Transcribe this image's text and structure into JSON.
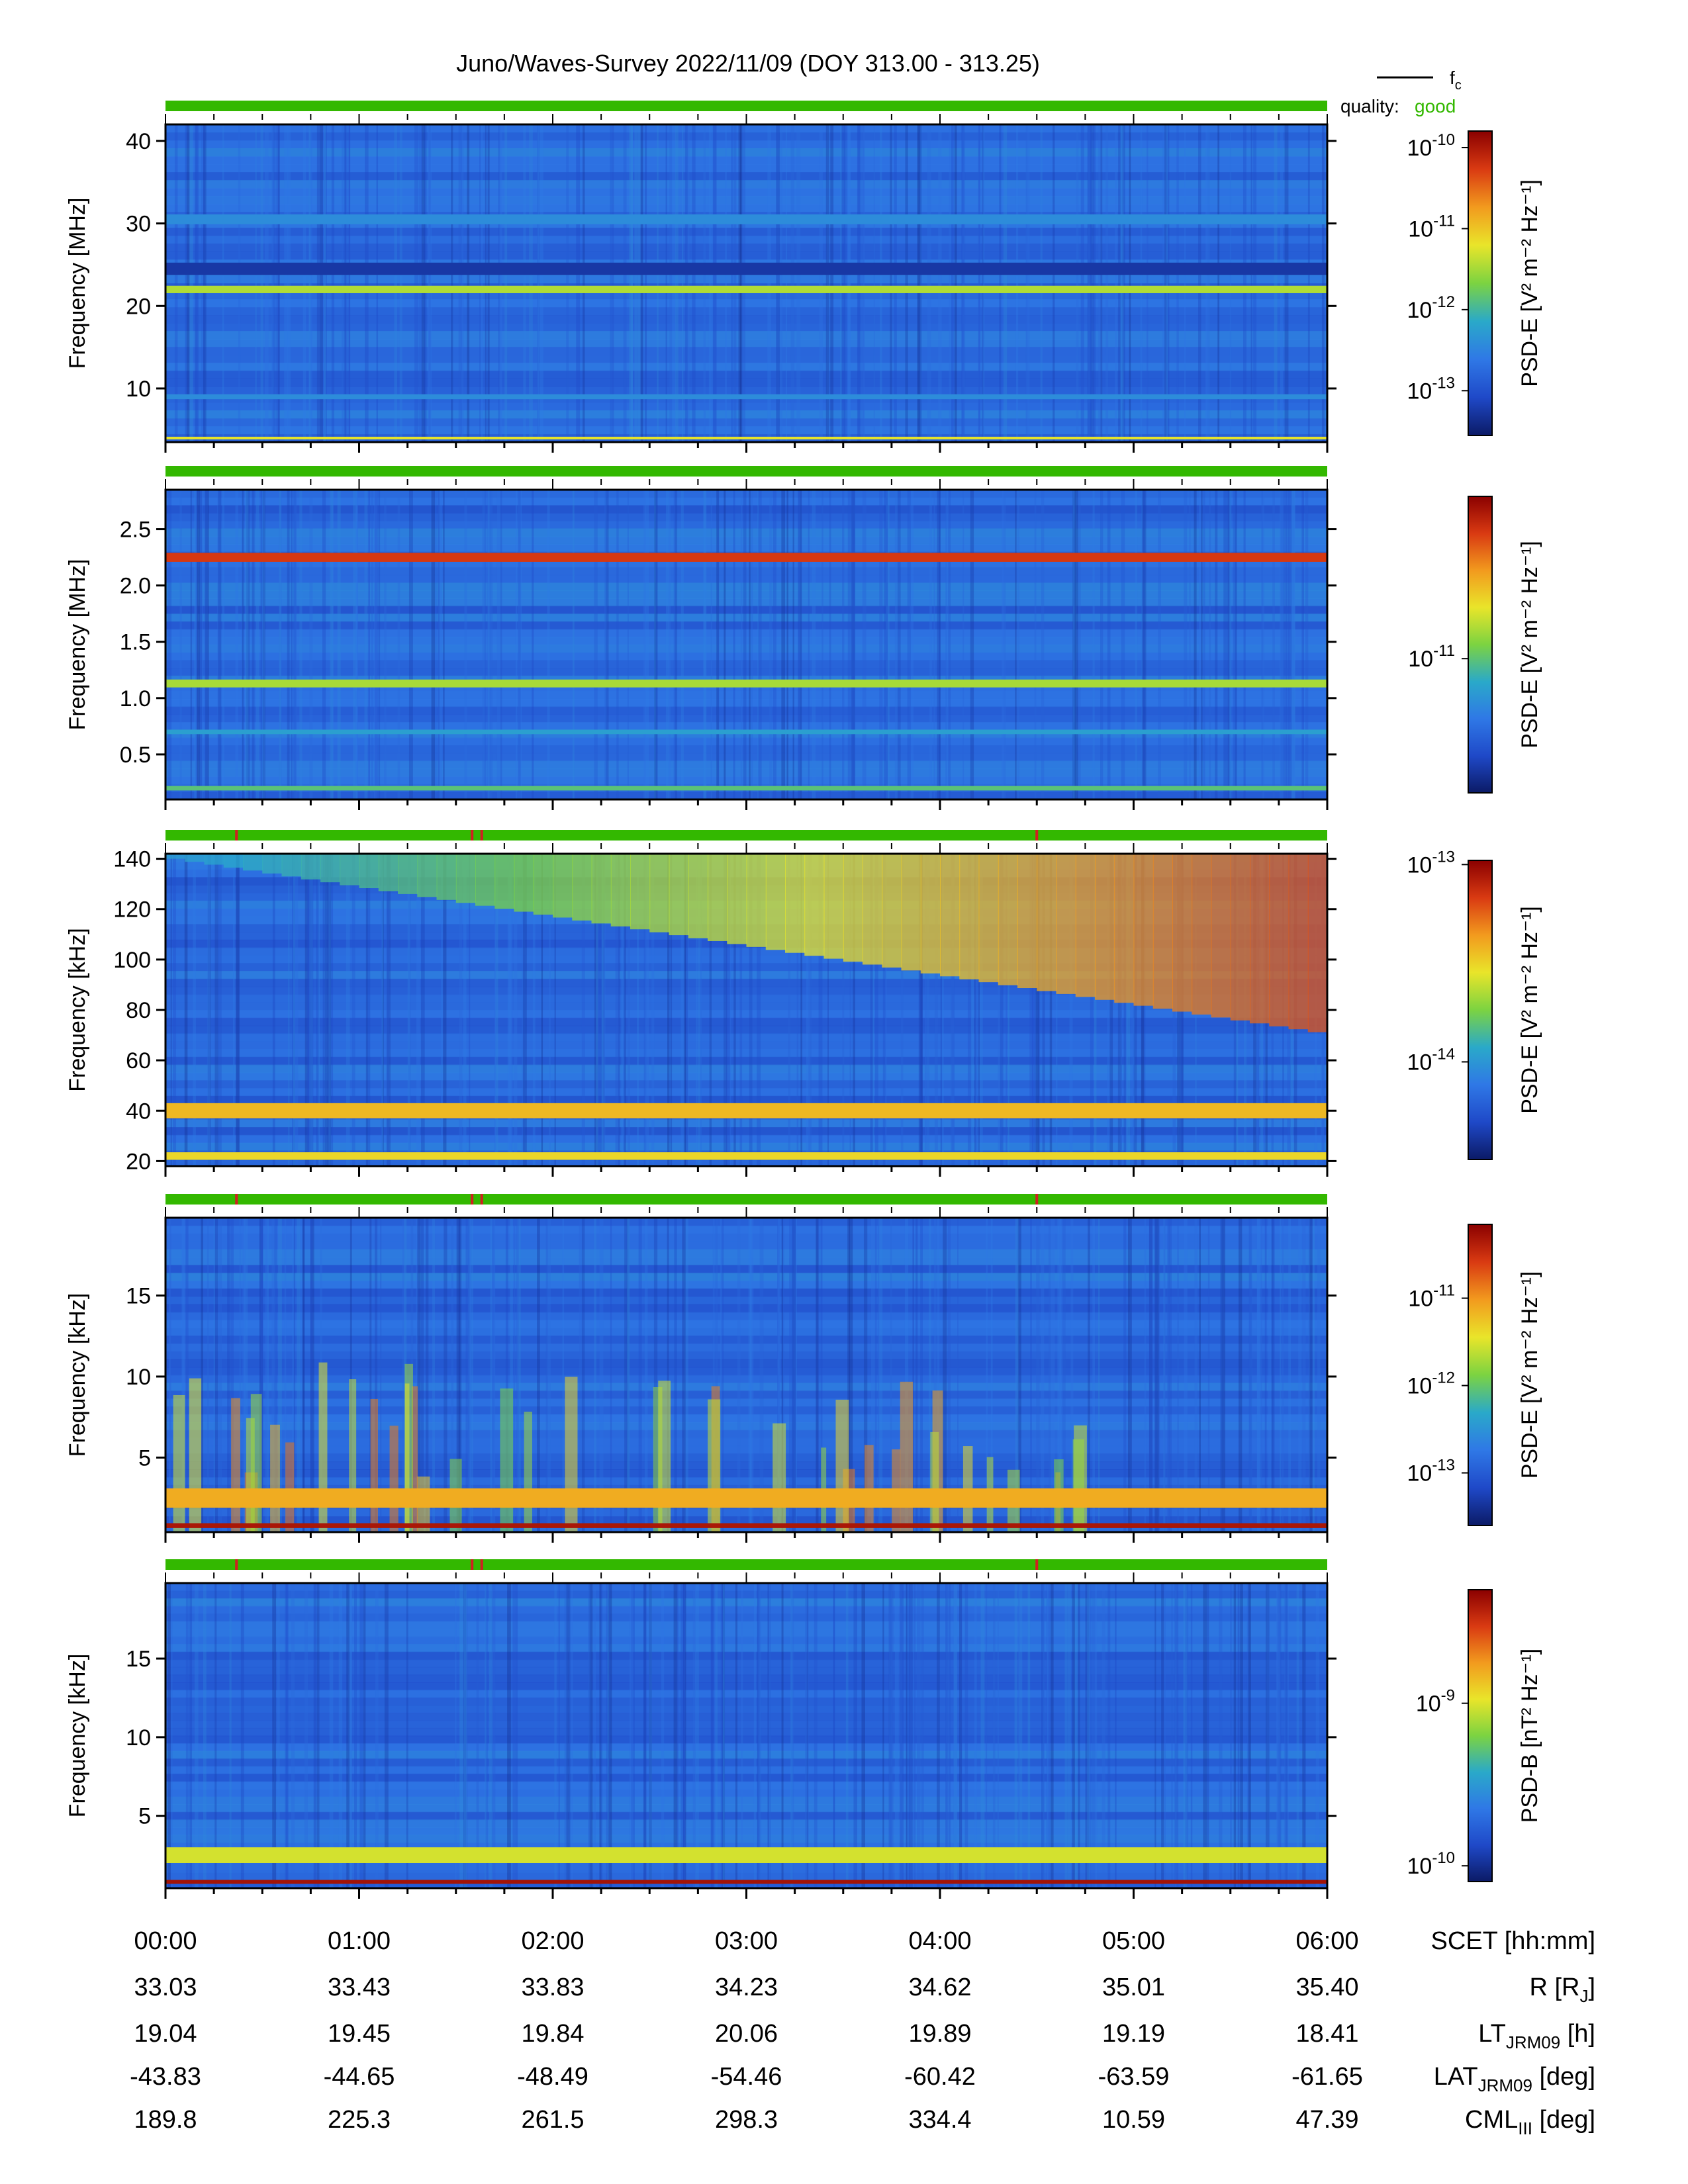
{
  "title": "Juno/Waves-Survey  2022/11/09 (DOY 313.00 - 313.25)",
  "legend": {
    "line_label": "f",
    "line_label_sub": "c",
    "quality_label": "quality:",
    "quality_value": "good"
  },
  "colors": {
    "quality_good": "#33b800",
    "quality_flag": "#d02020",
    "colormap": [
      "#0b1a66",
      "#1f49c8",
      "#2f78e6",
      "#2aa9c9",
      "#7cd341",
      "#e9e52a",
      "#f29a1e",
      "#d93a12",
      "#8a0000"
    ]
  },
  "chart_data": [
    {
      "type": "heatmap",
      "ylabel": "Frequency [MHz]",
      "ylim": [
        3.5,
        42
      ],
      "yticks": [
        10,
        20,
        30,
        40
      ],
      "yticklabels": [
        "10",
        "20",
        "30",
        "40"
      ],
      "colorbar": {
        "label": "PSD-E [V² m⁻² Hz⁻¹]",
        "label_main": "PSD-E [V",
        "tick_exponents": [
          "-10",
          "-11",
          "-12",
          "-13"
        ],
        "tick_values": [
          1e-10,
          1e-11,
          1e-12,
          1e-13
        ],
        "range": [
          2.8e-14,
          1.6e-10
        ],
        "scale": "log"
      },
      "bands": [
        {
          "y": 22,
          "level": 0.56,
          "width": 0.9
        },
        {
          "y": 30.5,
          "level": 0.3,
          "width": 1.2
        },
        {
          "y": 24.5,
          "level": 0.08,
          "width": 1.5
        },
        {
          "y": 9,
          "level": 0.3,
          "width": 0.6
        },
        {
          "y": 4,
          "level": 0.62,
          "width": 0.3
        }
      ],
      "quality_flags": []
    },
    {
      "type": "heatmap",
      "ylabel": "Frequency [MHz]",
      "ylim": [
        0.1,
        2.85
      ],
      "yticks": [
        0.5,
        1.0,
        1.5,
        2.0,
        2.5
      ],
      "yticklabels": [
        "0.5",
        "1.0",
        "1.5",
        "2.0",
        "2.5"
      ],
      "colorbar": {
        "label": "PSD-E [V² m⁻² Hz⁻¹]",
        "label_main": "PSD-E [V",
        "tick_exponents": [
          "-11"
        ],
        "tick_values": [
          1e-11
        ],
        "range": [
          2e-12,
          7e-11
        ],
        "scale": "log"
      },
      "bands": [
        {
          "y": 2.25,
          "level": 0.88,
          "width": 0.08
        },
        {
          "y": 1.13,
          "level": 0.55,
          "width": 0.07
        },
        {
          "y": 0.7,
          "level": 0.35,
          "width": 0.04
        },
        {
          "y": 0.2,
          "level": 0.45,
          "width": 0.04
        }
      ],
      "quality_flags": []
    },
    {
      "type": "heatmap",
      "ylabel": "Frequency [kHz]",
      "ylim": [
        18,
        142
      ],
      "yticks": [
        20,
        40,
        60,
        80,
        100,
        120,
        140
      ],
      "yticklabels": [
        "20",
        "40",
        "60",
        "80",
        "100",
        "120",
        "140"
      ],
      "colorbar": {
        "label": "PSD-E [V² m⁻² Hz⁻¹]",
        "label_main": "PSD-E [V",
        "tick_exponents": [
          "-13",
          "-14"
        ],
        "tick_values": [
          1e-13,
          1e-14
        ],
        "range": [
          3.2e-15,
          1.05e-13
        ],
        "scale": "log"
      },
      "bands": [
        {
          "y": 40,
          "level": 0.7,
          "width": 6
        },
        {
          "y": 22,
          "level": 0.65,
          "width": 3
        }
      ],
      "quality_flags": [
        "00:22",
        "01:35",
        "01:38",
        "04:30"
      ]
    },
    {
      "type": "heatmap",
      "ylabel": "Frequency [kHz]",
      "ylim": [
        0.4,
        19.8
      ],
      "yticks": [
        5,
        10,
        15
      ],
      "yticklabels": [
        "5",
        "10",
        "15"
      ],
      "colorbar": {
        "label": "PSD-E [V² m⁻² Hz⁻¹]",
        "label_main": "PSD-E [V",
        "tick_exponents": [
          "-11",
          "-12",
          "-13"
        ],
        "tick_values": [
          1e-11,
          1e-12,
          1e-13
        ],
        "range": [
          2.5e-14,
          7e-11
        ],
        "scale": "log"
      },
      "bands": [
        {
          "y": 2.5,
          "level": 0.72,
          "width": 1.2
        },
        {
          "y": 0.8,
          "level": 0.95,
          "width": 0.3
        }
      ],
      "quality_flags": [
        "00:22",
        "01:35",
        "01:38",
        "04:30"
      ]
    },
    {
      "type": "heatmap",
      "ylabel": "Frequency [kHz]",
      "ylim": [
        0.4,
        19.8
      ],
      "yticks": [
        5,
        10,
        15
      ],
      "yticklabels": [
        "5",
        "10",
        "15"
      ],
      "colorbar": {
        "label": "PSD-B [nT² Hz⁻¹]",
        "label_main": "PSD-B [nT",
        "tick_exponents": [
          "-9",
          "-10"
        ],
        "tick_values": [
          1e-09,
          1e-10
        ],
        "range": [
          8e-11,
          5e-09
        ],
        "scale": "log"
      },
      "bands": [
        {
          "y": 2.5,
          "level": 0.6,
          "width": 1.0
        },
        {
          "y": 0.8,
          "level": 0.96,
          "width": 0.25
        }
      ],
      "quality_flags": [
        "00:22",
        "01:35",
        "01:38",
        "04:30"
      ]
    }
  ],
  "time_axis": {
    "range": [
      "00:00",
      "06:00"
    ],
    "rows": [
      {
        "label_main": "SCET [hh:mm]",
        "label_sub": "",
        "label_tail": "",
        "values": [
          "00:00",
          "01:00",
          "02:00",
          "03:00",
          "04:00",
          "05:00",
          "06:00"
        ]
      },
      {
        "label_main": "R [R",
        "label_sub": "J",
        "label_tail": "]",
        "values": [
          "33.03",
          "33.43",
          "33.83",
          "34.23",
          "34.62",
          "35.01",
          "35.40"
        ]
      },
      {
        "label_main": "LT",
        "label_sub": "JRM09",
        "label_tail": " [h]",
        "values": [
          "19.04",
          "19.45",
          "19.84",
          "20.06",
          "19.89",
          "19.19",
          "18.41"
        ]
      },
      {
        "label_main": "LAT",
        "label_sub": "JRM09",
        "label_tail": " [deg]",
        "values": [
          "-43.83",
          "-44.65",
          "-48.49",
          "-54.46",
          "-60.42",
          "-63.59",
          "-61.65"
        ]
      },
      {
        "label_main": "CML",
        "label_sub": "III",
        "label_tail": " [deg]",
        "values": [
          "189.8",
          "225.3",
          "261.5",
          "298.3",
          "334.4",
          "10.59",
          "47.39"
        ]
      }
    ]
  }
}
